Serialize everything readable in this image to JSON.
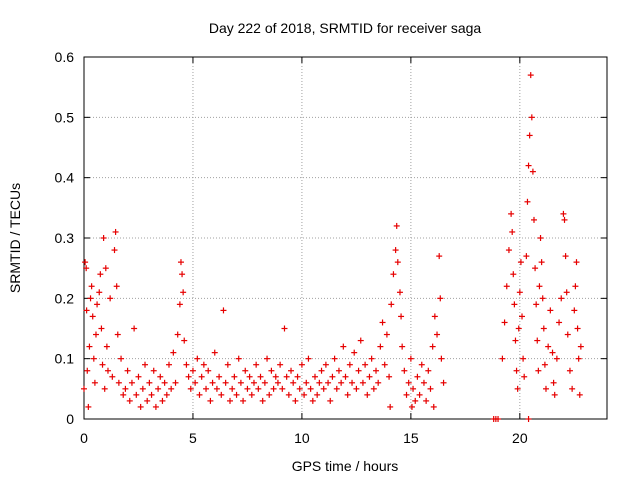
{
  "chart_data": {
    "type": "scatter",
    "title": "Day 222 of 2018, SRMTID for receiver saga",
    "xlabel": "GPS time / hours",
    "ylabel": "SRMTID / TECUs",
    "xlim": [
      0,
      24
    ],
    "ylim": [
      0,
      0.6
    ],
    "x_ticks": [
      0,
      5,
      10,
      15,
      20
    ],
    "x_tick_labels": [
      "0",
      "5",
      "10",
      "15",
      "20"
    ],
    "y_ticks": [
      0,
      0.1,
      0.2,
      0.3,
      0.4,
      0.5,
      0.6
    ],
    "y_tick_labels": [
      "0",
      "0.1",
      "0.2",
      "0.3",
      "0.4",
      "0.5",
      "0.6"
    ],
    "grid": true,
    "marker": "+",
    "marker_color": "#e60000",
    "series": [
      {
        "name": "SRMTID",
        "points": [
          [
            0.0,
            0.05
          ],
          [
            0.05,
            0.26
          ],
          [
            0.1,
            0.25
          ],
          [
            0.12,
            0.18
          ],
          [
            0.15,
            0.08
          ],
          [
            0.2,
            0.02
          ],
          [
            0.25,
            0.12
          ],
          [
            0.3,
            0.2
          ],
          [
            0.35,
            0.22
          ],
          [
            0.4,
            0.17
          ],
          [
            0.45,
            0.1
          ],
          [
            0.5,
            0.06
          ],
          [
            0.55,
            0.14
          ],
          [
            0.6,
            0.19
          ],
          [
            0.7,
            0.21
          ],
          [
            0.75,
            0.24
          ],
          [
            0.8,
            0.15
          ],
          [
            0.85,
            0.09
          ],
          [
            0.9,
            0.3
          ],
          [
            0.95,
            0.05
          ],
          [
            1.0,
            0.25
          ],
          [
            1.05,
            0.12
          ],
          [
            1.1,
            0.08
          ],
          [
            1.2,
            0.2
          ],
          [
            1.3,
            0.07
          ],
          [
            1.4,
            0.28
          ],
          [
            1.45,
            0.31
          ],
          [
            1.5,
            0.22
          ],
          [
            1.55,
            0.14
          ],
          [
            1.6,
            0.06
          ],
          [
            1.7,
            0.1
          ],
          [
            1.8,
            0.04
          ],
          [
            1.9,
            0.05
          ],
          [
            2.0,
            0.08
          ],
          [
            2.1,
            0.03
          ],
          [
            2.2,
            0.06
          ],
          [
            2.3,
            0.15
          ],
          [
            2.4,
            0.04
          ],
          [
            2.5,
            0.07
          ],
          [
            2.6,
            0.02
          ],
          [
            2.7,
            0.05
          ],
          [
            2.8,
            0.09
          ],
          [
            2.9,
            0.03
          ],
          [
            3.0,
            0.06
          ],
          [
            3.1,
            0.04
          ],
          [
            3.2,
            0.08
          ],
          [
            3.3,
            0.02
          ],
          [
            3.4,
            0.05
          ],
          [
            3.5,
            0.07
          ],
          [
            3.6,
            0.03
          ],
          [
            3.7,
            0.06
          ],
          [
            3.8,
            0.04
          ],
          [
            3.9,
            0.09
          ],
          [
            4.0,
            0.05
          ],
          [
            4.1,
            0.11
          ],
          [
            4.2,
            0.06
          ],
          [
            4.3,
            0.14
          ],
          [
            4.4,
            0.19
          ],
          [
            4.45,
            0.26
          ],
          [
            4.5,
            0.24
          ],
          [
            4.55,
            0.21
          ],
          [
            4.6,
            0.13
          ],
          [
            4.7,
            0.09
          ],
          [
            4.8,
            0.07
          ],
          [
            4.9,
            0.05
          ],
          [
            5.0,
            0.08
          ],
          [
            5.1,
            0.06
          ],
          [
            5.2,
            0.1
          ],
          [
            5.3,
            0.04
          ],
          [
            5.4,
            0.07
          ],
          [
            5.5,
            0.09
          ],
          [
            5.6,
            0.05
          ],
          [
            5.7,
            0.08
          ],
          [
            5.8,
            0.03
          ],
          [
            5.9,
            0.06
          ],
          [
            6.0,
            0.11
          ],
          [
            6.1,
            0.05
          ],
          [
            6.2,
            0.07
          ],
          [
            6.3,
            0.04
          ],
          [
            6.4,
            0.18
          ],
          [
            6.5,
            0.06
          ],
          [
            6.6,
            0.09
          ],
          [
            6.7,
            0.03
          ],
          [
            6.8,
            0.05
          ],
          [
            6.9,
            0.07
          ],
          [
            7.0,
            0.04
          ],
          [
            7.1,
            0.1
          ],
          [
            7.2,
            0.06
          ],
          [
            7.3,
            0.03
          ],
          [
            7.4,
            0.08
          ],
          [
            7.5,
            0.05
          ],
          [
            7.6,
            0.07
          ],
          [
            7.7,
            0.04
          ],
          [
            7.8,
            0.06
          ],
          [
            7.9,
            0.09
          ],
          [
            8.0,
            0.05
          ],
          [
            8.1,
            0.07
          ],
          [
            8.2,
            0.03
          ],
          [
            8.3,
            0.06
          ],
          [
            8.4,
            0.1
          ],
          [
            8.5,
            0.04
          ],
          [
            8.6,
            0.08
          ],
          [
            8.7,
            0.05
          ],
          [
            8.8,
            0.07
          ],
          [
            8.9,
            0.06
          ],
          [
            9.0,
            0.09
          ],
          [
            9.1,
            0.05
          ],
          [
            9.2,
            0.15
          ],
          [
            9.3,
            0.07
          ],
          [
            9.4,
            0.04
          ],
          [
            9.5,
            0.08
          ],
          [
            9.6,
            0.06
          ],
          [
            9.7,
            0.03
          ],
          [
            9.8,
            0.07
          ],
          [
            9.9,
            0.05
          ],
          [
            10.0,
            0.09
          ],
          [
            10.1,
            0.04
          ],
          [
            10.2,
            0.06
          ],
          [
            10.3,
            0.1
          ],
          [
            10.4,
            0.05
          ],
          [
            10.5,
            0.03
          ],
          [
            10.6,
            0.07
          ],
          [
            10.7,
            0.04
          ],
          [
            10.8,
            0.06
          ],
          [
            10.9,
            0.08
          ],
          [
            11.0,
            0.05
          ],
          [
            11.1,
            0.09
          ],
          [
            11.2,
            0.06
          ],
          [
            11.3,
            0.03
          ],
          [
            11.4,
            0.07
          ],
          [
            11.5,
            0.1
          ],
          [
            11.6,
            0.05
          ],
          [
            11.7,
            0.08
          ],
          [
            11.8,
            0.06
          ],
          [
            11.9,
            0.12
          ],
          [
            12.0,
            0.07
          ],
          [
            12.1,
            0.04
          ],
          [
            12.2,
            0.09
          ],
          [
            12.3,
            0.06
          ],
          [
            12.4,
            0.11
          ],
          [
            12.5,
            0.05
          ],
          [
            12.6,
            0.08
          ],
          [
            12.7,
            0.13
          ],
          [
            12.8,
            0.06
          ],
          [
            12.9,
            0.09
          ],
          [
            13.0,
            0.04
          ],
          [
            13.1,
            0.07
          ],
          [
            13.2,
            0.1
          ],
          [
            13.3,
            0.05
          ],
          [
            13.4,
            0.08
          ],
          [
            13.5,
            0.06
          ],
          [
            13.6,
            0.12
          ],
          [
            13.7,
            0.16
          ],
          [
            13.8,
            0.09
          ],
          [
            13.9,
            0.14
          ],
          [
            14.0,
            0.07
          ],
          [
            14.05,
            0.02
          ],
          [
            14.1,
            0.19
          ],
          [
            14.2,
            0.24
          ],
          [
            14.3,
            0.28
          ],
          [
            14.35,
            0.32
          ],
          [
            14.4,
            0.26
          ],
          [
            14.5,
            0.21
          ],
          [
            14.55,
            0.17
          ],
          [
            14.6,
            0.12
          ],
          [
            14.7,
            0.08
          ],
          [
            14.8,
            0.04
          ],
          [
            14.9,
            0.06
          ],
          [
            15.0,
            0.1
          ],
          [
            15.05,
            0.02
          ],
          [
            15.1,
            0.05
          ],
          [
            15.2,
            0.03
          ],
          [
            15.3,
            0.07
          ],
          [
            15.4,
            0.04
          ],
          [
            15.5,
            0.09
          ],
          [
            15.6,
            0.06
          ],
          [
            15.7,
            0.03
          ],
          [
            15.8,
            0.08
          ],
          [
            15.9,
            0.05
          ],
          [
            16.0,
            0.12
          ],
          [
            16.05,
            0.02
          ],
          [
            16.1,
            0.17
          ],
          [
            16.2,
            0.14
          ],
          [
            16.3,
            0.27
          ],
          [
            16.35,
            0.2
          ],
          [
            16.4,
            0.1
          ],
          [
            16.5,
            0.06
          ],
          [
            18.8,
            0.0
          ],
          [
            18.9,
            0.0
          ],
          [
            19.0,
            0.0
          ],
          [
            20.4,
            0.0
          ],
          [
            19.2,
            0.1
          ],
          [
            19.3,
            0.16
          ],
          [
            19.4,
            0.22
          ],
          [
            19.5,
            0.28
          ],
          [
            19.6,
            0.34
          ],
          [
            19.65,
            0.31
          ],
          [
            19.7,
            0.24
          ],
          [
            19.75,
            0.19
          ],
          [
            19.8,
            0.13
          ],
          [
            19.85,
            0.08
          ],
          [
            19.9,
            0.05
          ],
          [
            19.95,
            0.15
          ],
          [
            20.0,
            0.21
          ],
          [
            20.05,
            0.26
          ],
          [
            20.1,
            0.17
          ],
          [
            20.15,
            0.1
          ],
          [
            20.2,
            0.07
          ],
          [
            20.3,
            0.27
          ],
          [
            20.35,
            0.36
          ],
          [
            20.4,
            0.42
          ],
          [
            20.45,
            0.47
          ],
          [
            20.5,
            0.57
          ],
          [
            20.55,
            0.5
          ],
          [
            20.6,
            0.41
          ],
          [
            20.65,
            0.33
          ],
          [
            20.7,
            0.25
          ],
          [
            20.75,
            0.19
          ],
          [
            20.8,
            0.13
          ],
          [
            20.85,
            0.08
          ],
          [
            20.9,
            0.22
          ],
          [
            20.95,
            0.3
          ],
          [
            21.0,
            0.26
          ],
          [
            21.05,
            0.2
          ],
          [
            21.1,
            0.15
          ],
          [
            21.15,
            0.09
          ],
          [
            21.2,
            0.05
          ],
          [
            21.3,
            0.12
          ],
          [
            21.4,
            0.18
          ],
          [
            21.5,
            0.11
          ],
          [
            21.55,
            0.06
          ],
          [
            21.6,
            0.04
          ],
          [
            21.7,
            0.1
          ],
          [
            21.8,
            0.16
          ],
          [
            21.9,
            0.2
          ],
          [
            22.0,
            0.34
          ],
          [
            22.05,
            0.33
          ],
          [
            22.1,
            0.27
          ],
          [
            22.15,
            0.21
          ],
          [
            22.2,
            0.14
          ],
          [
            22.3,
            0.08
          ],
          [
            22.4,
            0.05
          ],
          [
            22.5,
            0.18
          ],
          [
            22.55,
            0.22
          ],
          [
            22.6,
            0.26
          ],
          [
            22.65,
            0.15
          ],
          [
            22.7,
            0.1
          ],
          [
            22.75,
            0.04
          ],
          [
            22.8,
            0.12
          ]
        ]
      }
    ]
  }
}
